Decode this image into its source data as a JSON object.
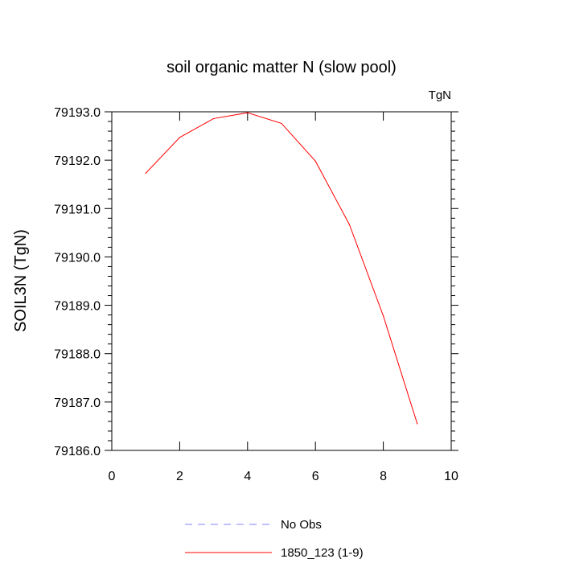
{
  "chart_data": {
    "type": "line",
    "title": "soil organic matter N (slow pool)",
    "units_label": "TgN",
    "ylabel": "SOIL3N  (TgN)",
    "xlabel": "",
    "xlim": [
      0,
      10
    ],
    "ylim": [
      79186.0,
      79193.0
    ],
    "x_ticks": [
      0,
      2,
      4,
      6,
      8,
      10
    ],
    "x_tick_labels": [
      "0",
      "2",
      "4",
      "6",
      "8",
      "10"
    ],
    "y_ticks": [
      79186.0,
      79187.0,
      79188.0,
      79189.0,
      79190.0,
      79191.0,
      79192.0,
      79193.0
    ],
    "y_tick_labels": [
      "79186.0",
      "79187.0",
      "79188.0",
      "79189.0",
      "79190.0",
      "79191.0",
      "79192.0",
      "79193.0"
    ],
    "grid": false,
    "legend_position": "bottom",
    "series": [
      {
        "name": "1850_123 (1-9)",
        "color": "#ff0000",
        "dash": "solid",
        "x": [
          1,
          2,
          3,
          4,
          5,
          6,
          7,
          8,
          9
        ],
        "y": [
          79191.73,
          79192.47,
          79192.86,
          79192.98,
          79192.76,
          79191.98,
          79190.67,
          79188.78,
          79186.55
        ]
      },
      {
        "name": "No Obs",
        "color": "#8080ff",
        "dash": "dashed",
        "x": [],
        "y": []
      }
    ]
  }
}
